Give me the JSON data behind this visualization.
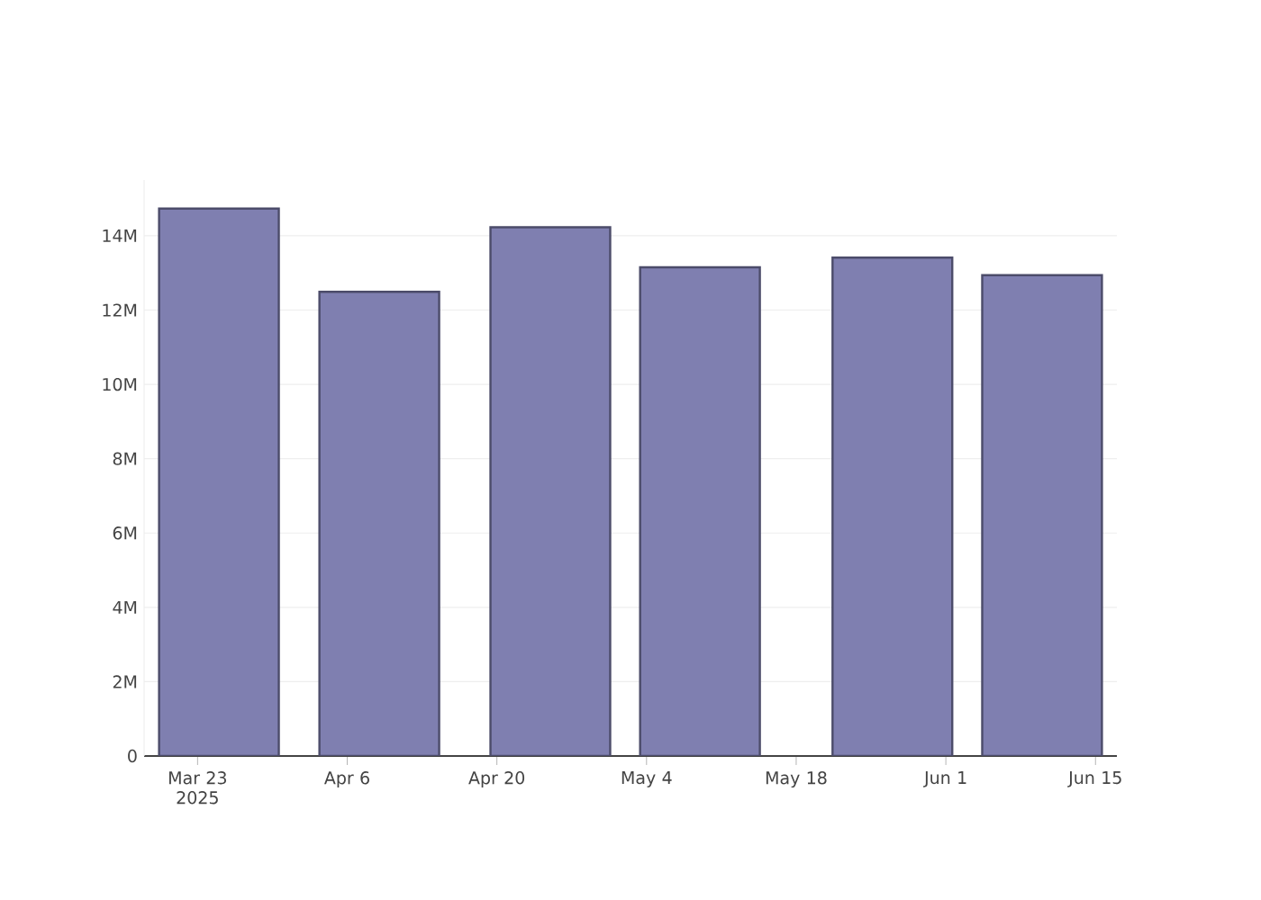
{
  "chart_data": {
    "type": "bar",
    "x": [
      "2025-03-25",
      "2025-04-09",
      "2025-04-25",
      "2025-05-09",
      "2025-05-27",
      "2025-06-10"
    ],
    "values": [
      14730000,
      12490000,
      14230000,
      13150000,
      13410000,
      12940000
    ],
    "color": "#7f7fb0",
    "xlim": [
      "2025-03-18",
      "2025-06-17"
    ],
    "xticks": [
      {
        "value": "2025-03-23",
        "label": "Mar 23 2025"
      },
      {
        "value": "2025-04-06",
        "label": "Apr 6"
      },
      {
        "value": "2025-04-20",
        "label": "Apr 20"
      },
      {
        "value": "2025-05-04",
        "label": "May 4"
      },
      {
        "value": "2025-05-18",
        "label": "May 18"
      },
      {
        "value": "2025-06-01",
        "label": "Jun 1"
      },
      {
        "value": "2025-06-15",
        "label": "Jun 15"
      }
    ],
    "yticks": [
      {
        "value": 0,
        "label": "0"
      },
      {
        "value": 2000000,
        "label": "2M"
      },
      {
        "value": 4000000,
        "label": "4M"
      },
      {
        "value": 6000000,
        "label": "6M"
      },
      {
        "value": 8000000,
        "label": "8M"
      },
      {
        "value": 10000000,
        "label": "10M"
      },
      {
        "value": 12000000,
        "label": "12M"
      },
      {
        "value": 14000000,
        "label": "14M"
      }
    ],
    "ylim": [
      0,
      15500000
    ],
    "grid": "y"
  }
}
